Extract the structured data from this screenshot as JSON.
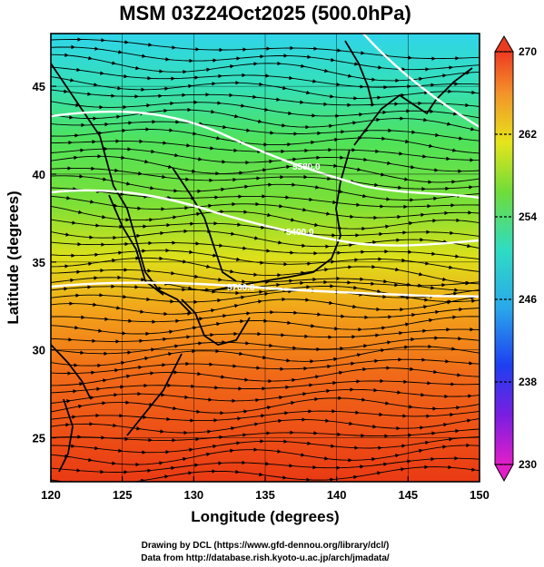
{
  "title": "MSM 03Z24Oct2025 (500.0hPa)",
  "xlabel": "Longitude (degrees)",
  "ylabel": "Latitude  (degrees)",
  "xticks": [
    {
      "value": 120,
      "label": "120"
    },
    {
      "value": 125,
      "label": "125"
    },
    {
      "value": 130,
      "label": "130"
    },
    {
      "value": 135,
      "label": "135"
    },
    {
      "value": 140,
      "label": "140"
    },
    {
      "value": 145,
      "label": "145"
    },
    {
      "value": 150,
      "label": "150"
    }
  ],
  "yticks": [
    {
      "value": 25,
      "label": "25"
    },
    {
      "value": 30,
      "label": "30"
    },
    {
      "value": 35,
      "label": "35"
    },
    {
      "value": 40,
      "label": "40"
    },
    {
      "value": 45,
      "label": "45"
    }
  ],
  "lon_range": [
    120,
    150
  ],
  "lat_range": [
    22.5,
    48
  ],
  "colorbar": {
    "min": 230,
    "max": 270,
    "tick_labels": [
      {
        "value": 270,
        "label": "270"
      },
      {
        "value": 262,
        "label": "262"
      },
      {
        "value": 254,
        "label": "254"
      },
      {
        "value": 246,
        "label": "246"
      },
      {
        "value": 238,
        "label": "238"
      },
      {
        "value": 230,
        "label": "230"
      }
    ]
  },
  "contour_labels": [
    {
      "text": "5400.0",
      "lon": 137.5,
      "lat": 38.5
    },
    {
      "text": "5700.0",
      "lon": 137.0,
      "lat": 36.9
    },
    {
      "text": "5580.0",
      "lon": 138.8,
      "lat": 41.0
    }
  ],
  "credits": {
    "line1": "Drawing by DCL (https://www.gfd-dennou.org/library/dcl/)",
    "line2": "Data from http://database.rish.kyoto-u.ac.jp/arch/jmadata/"
  }
}
